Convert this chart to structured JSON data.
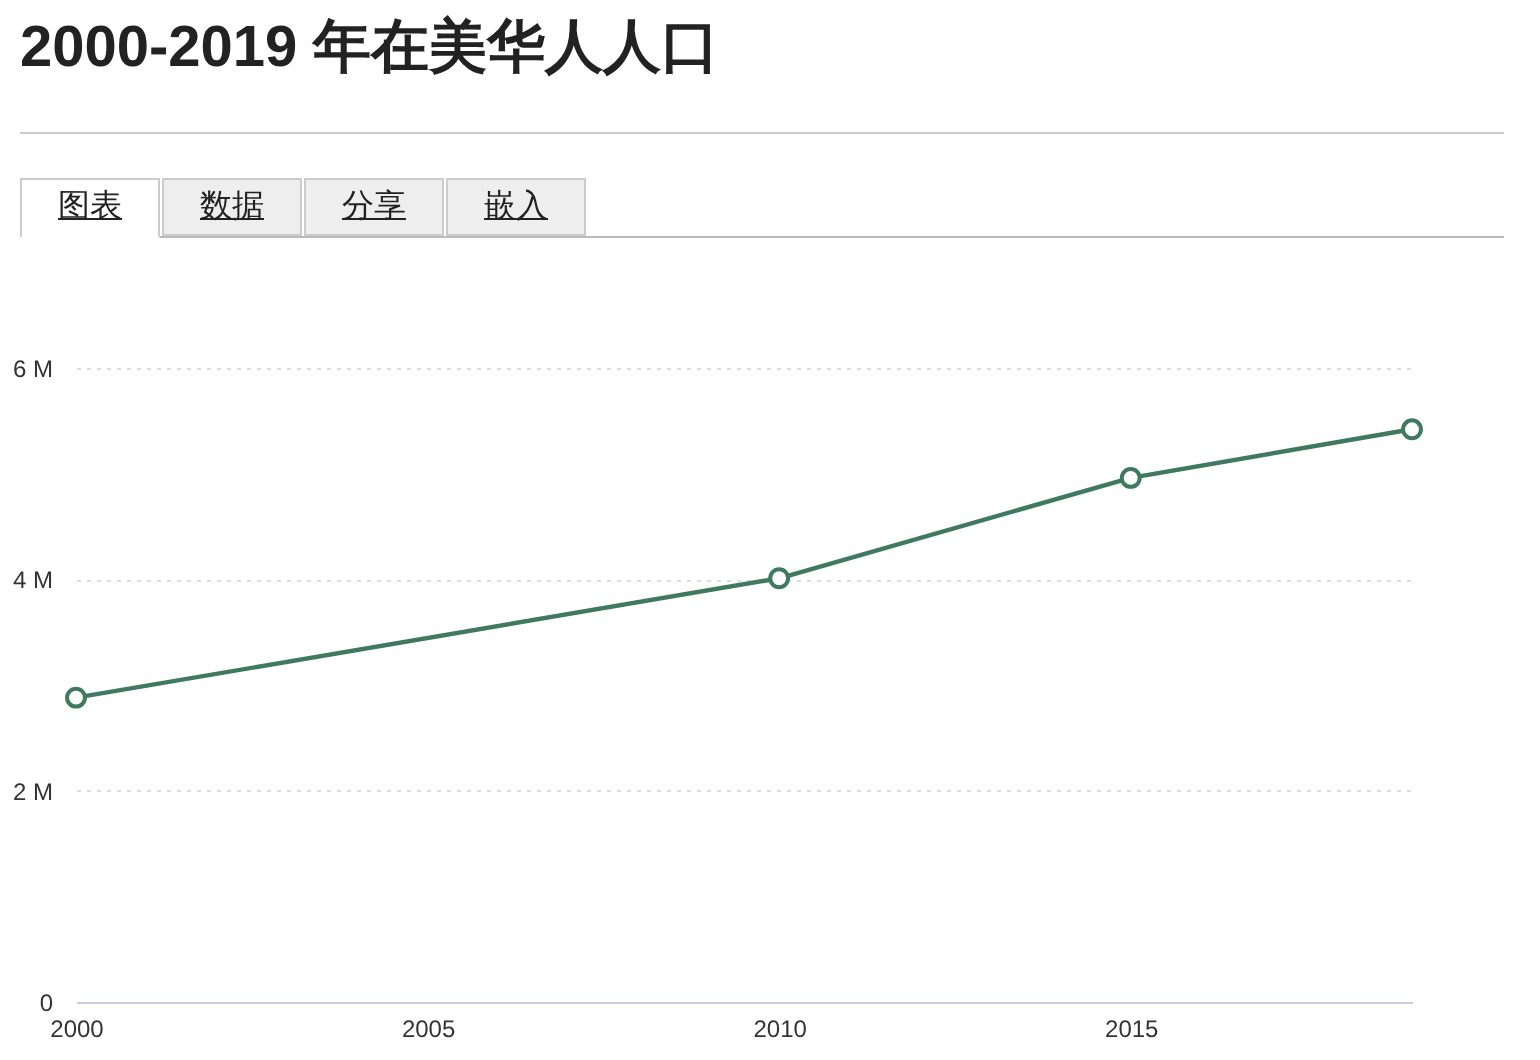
{
  "chart_data": {
    "type": "line",
    "title": "2000-2019 年在美华人人口",
    "annotations": [
      "图表",
      "数据",
      "分享",
      "嵌入"
    ],
    "x": [
      2000,
      2010,
      2015,
      2019
    ],
    "series": [
      {
        "color": "#3f7a60",
        "values": [
          2.88,
          4.01,
          4.96,
          5.42
        ]
      }
    ],
    "xlim": [
      2000,
      2019
    ],
    "xticks": [
      2000,
      2005,
      2010,
      2015
    ],
    "ylim": [
      0,
      6
    ],
    "yticks": [
      {
        "value": 0,
        "label": "0"
      },
      {
        "value": 2,
        "label": "2 M"
      },
      {
        "value": 4,
        "label": "4 M"
      },
      {
        "value": 6,
        "label": "6 M"
      }
    ],
    "grid": "y",
    "marker": "circle",
    "line_style": "solid"
  }
}
